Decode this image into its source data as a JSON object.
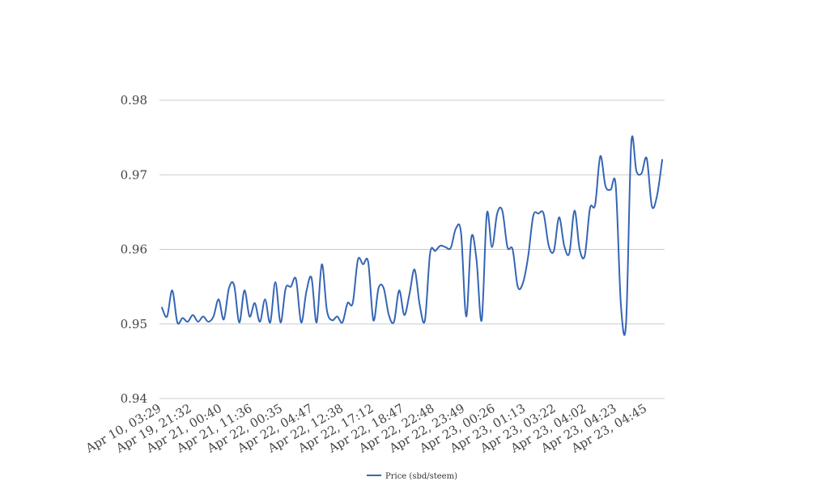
{
  "chart_data": {
    "type": "line",
    "title": "",
    "xlabel": "",
    "ylabel": "",
    "ylim": [
      0.94,
      0.98
    ],
    "yticks": [
      "0.94",
      "0.95",
      "0.96",
      "0.97",
      "0.98"
    ],
    "xtick_labels": [
      "Apr 10, 03:29",
      "Apr 19, 21:32",
      "Apr 21, 00:40",
      "Apr 21, 11:36",
      "Apr 22, 00:35",
      "Apr 22, 04:47",
      "Apr 22, 12:38",
      "Apr 22, 17:12",
      "Apr 22, 18:47",
      "Apr 22, 22:48",
      "Apr 22, 23:49",
      "Apr 23, 00:26",
      "Apr 23, 01:13",
      "Apr 23, 03:22",
      "Apr 23, 04:02",
      "Apr 23, 04:23",
      "Apr 23, 04:45"
    ],
    "grid": true,
    "legend": "bottom-center",
    "line_color": "#3565b5",
    "series": [
      {
        "name": "Price (sbd/steem)",
        "values": [
          0.9522,
          0.951,
          0.9545,
          0.9502,
          0.9508,
          0.9503,
          0.9512,
          0.9503,
          0.951,
          0.9503,
          0.951,
          0.9533,
          0.9506,
          0.9548,
          0.9552,
          0.9502,
          0.9545,
          0.951,
          0.9528,
          0.9503,
          0.9533,
          0.9502,
          0.9556,
          0.9502,
          0.9548,
          0.955,
          0.956,
          0.9502,
          0.9543,
          0.9562,
          0.9502,
          0.958,
          0.9518,
          0.9505,
          0.951,
          0.9502,
          0.9528,
          0.9528,
          0.9586,
          0.958,
          0.9583,
          0.9505,
          0.9548,
          0.9548,
          0.9512,
          0.9503,
          0.9545,
          0.9512,
          0.954,
          0.9573,
          0.9525,
          0.9505,
          0.9595,
          0.9598,
          0.9605,
          0.9603,
          0.9602,
          0.9628,
          0.9622,
          0.951,
          0.9616,
          0.9586,
          0.9505,
          0.9648,
          0.9603,
          0.9648,
          0.9652,
          0.9603,
          0.96,
          0.955,
          0.9555,
          0.959,
          0.9645,
          0.9648,
          0.9648,
          0.9605,
          0.9598,
          0.9643,
          0.9605,
          0.9595,
          0.9652,
          0.96,
          0.9592,
          0.9655,
          0.966,
          0.9725,
          0.9685,
          0.968,
          0.9685,
          0.9525,
          0.9502,
          0.9742,
          0.9705,
          0.9702,
          0.9722,
          0.9658,
          0.9672,
          0.972
        ]
      }
    ]
  }
}
